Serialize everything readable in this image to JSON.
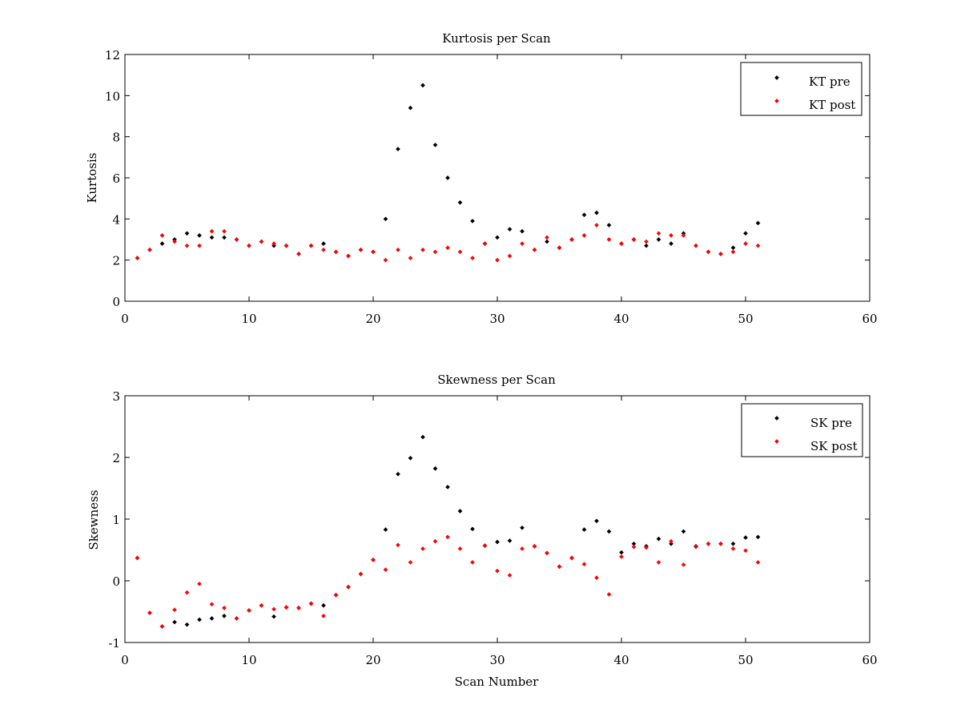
{
  "chart_data": [
    {
      "type": "scatter",
      "title": "Kurtosis per Scan",
      "xlabel": "",
      "ylabel": "Kurtosis",
      "xlim": [
        0,
        60
      ],
      "ylim": [
        0,
        12
      ],
      "xticks": [
        0,
        10,
        20,
        30,
        40,
        50,
        60
      ],
      "yticks": [
        0,
        2,
        4,
        6,
        8,
        10,
        12
      ],
      "grid": false,
      "legend_position": "top-right",
      "series": [
        {
          "name": "KT pre",
          "color": "#000000",
          "x": [
            1,
            2,
            3,
            4,
            5,
            6,
            7,
            8,
            9,
            10,
            11,
            12,
            13,
            14,
            15,
            16,
            17,
            18,
            19,
            20,
            21,
            22,
            23,
            24,
            25,
            26,
            27,
            28,
            29,
            30,
            31,
            32,
            33,
            34,
            35,
            36,
            37,
            38,
            39,
            40,
            41,
            42,
            43,
            44,
            45,
            46,
            47,
            48,
            49,
            50,
            51
          ],
          "y": [
            2.1,
            2.5,
            2.8,
            3.0,
            3.3,
            3.2,
            3.1,
            3.1,
            3.0,
            2.7,
            2.9,
            2.7,
            2.7,
            2.3,
            2.7,
            2.8,
            2.4,
            2.2,
            2.5,
            2.4,
            4.0,
            7.4,
            9.4,
            10.5,
            7.6,
            6.0,
            4.8,
            3.9,
            2.8,
            3.1,
            3.5,
            3.4,
            2.5,
            2.9,
            2.6,
            3.0,
            4.2,
            4.3,
            3.7,
            2.8,
            3.0,
            2.7,
            3.0,
            2.8,
            3.3,
            2.7,
            2.4,
            2.3,
            2.6,
            3.3,
            3.8
          ]
        },
        {
          "name": "KT post",
          "color": "#ff0000",
          "x": [
            1,
            2,
            3,
            4,
            5,
            6,
            7,
            8,
            9,
            10,
            11,
            12,
            13,
            14,
            15,
            16,
            17,
            18,
            19,
            20,
            21,
            22,
            23,
            24,
            25,
            26,
            27,
            28,
            29,
            30,
            31,
            32,
            33,
            34,
            35,
            36,
            37,
            38,
            39,
            40,
            41,
            42,
            43,
            44,
            45,
            46,
            47,
            48,
            49,
            50,
            51
          ],
          "y": [
            2.1,
            2.5,
            3.2,
            2.9,
            2.7,
            2.7,
            3.4,
            3.4,
            3.0,
            2.7,
            2.9,
            2.8,
            2.7,
            2.3,
            2.7,
            2.5,
            2.4,
            2.2,
            2.5,
            2.4,
            2.0,
            2.5,
            2.1,
            2.5,
            2.4,
            2.6,
            2.4,
            2.1,
            2.8,
            2.0,
            2.2,
            2.8,
            2.5,
            3.1,
            2.6,
            3.0,
            3.2,
            3.7,
            3.0,
            2.8,
            3.0,
            2.9,
            3.3,
            3.2,
            3.2,
            2.7,
            2.4,
            2.3,
            2.4,
            2.8,
            2.7
          ]
        }
      ]
    },
    {
      "type": "scatter",
      "title": "Skewness per Scan",
      "xlabel": "Scan Number",
      "ylabel": "Skewness",
      "xlim": [
        0,
        60
      ],
      "ylim": [
        -1,
        3
      ],
      "xticks": [
        0,
        10,
        20,
        30,
        40,
        50,
        60
      ],
      "yticks": [
        -1,
        0,
        1,
        2,
        3
      ],
      "grid": false,
      "legend_position": "top-right",
      "series": [
        {
          "name": "SK pre",
          "color": "#000000",
          "x": [
            1,
            2,
            3,
            4,
            5,
            6,
            7,
            8,
            9,
            10,
            11,
            12,
            13,
            14,
            15,
            16,
            17,
            18,
            19,
            20,
            21,
            22,
            23,
            24,
            25,
            26,
            27,
            28,
            29,
            30,
            31,
            32,
            33,
            34,
            35,
            36,
            37,
            38,
            39,
            40,
            41,
            42,
            43,
            44,
            45,
            46,
            47,
            48,
            49,
            50,
            51
          ],
          "y": [
            0.37,
            -0.52,
            -0.74,
            -0.67,
            -0.71,
            -0.63,
            -0.61,
            -0.57,
            -0.61,
            -0.48,
            -0.4,
            -0.58,
            -0.43,
            -0.44,
            -0.37,
            -0.4,
            -0.23,
            -0.1,
            0.11,
            0.34,
            0.83,
            1.73,
            1.99,
            2.33,
            1.82,
            1.52,
            1.13,
            0.84,
            0.57,
            0.63,
            0.65,
            0.86,
            0.56,
            0.45,
            0.23,
            0.37,
            0.83,
            0.97,
            0.8,
            0.46,
            0.6,
            0.56,
            0.68,
            0.6,
            0.8,
            0.56,
            0.6,
            0.6,
            0.6,
            0.7,
            0.71
          ]
        },
        {
          "name": "SK post",
          "color": "#ff0000",
          "x": [
            1,
            2,
            3,
            4,
            5,
            6,
            7,
            8,
            9,
            10,
            11,
            12,
            13,
            14,
            15,
            16,
            17,
            18,
            19,
            20,
            21,
            22,
            23,
            24,
            25,
            26,
            27,
            28,
            29,
            30,
            31,
            32,
            33,
            34,
            35,
            36,
            37,
            38,
            39,
            40,
            41,
            42,
            43,
            44,
            45,
            46,
            47,
            48,
            49,
            50,
            51
          ],
          "y": [
            0.37,
            -0.52,
            -0.74,
            -0.47,
            -0.19,
            -0.05,
            -0.38,
            -0.44,
            -0.61,
            -0.48,
            -0.4,
            -0.46,
            -0.43,
            -0.44,
            -0.37,
            -0.57,
            -0.23,
            -0.1,
            0.11,
            0.34,
            0.18,
            0.58,
            0.3,
            0.52,
            0.64,
            0.71,
            0.52,
            0.3,
            0.57,
            0.16,
            0.09,
            0.52,
            0.56,
            0.45,
            0.23,
            0.37,
            0.27,
            0.05,
            -0.22,
            0.39,
            0.55,
            0.54,
            0.3,
            0.64,
            0.26,
            0.55,
            0.6,
            0.6,
            0.52,
            0.49,
            0.3
          ]
        }
      ]
    }
  ]
}
